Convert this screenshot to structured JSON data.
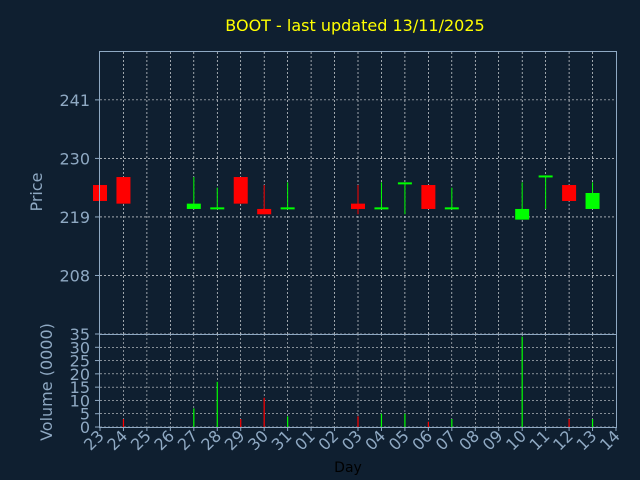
{
  "chart_data": [
    {
      "type": "candlestick",
      "title": "BOOT - last updated 13/11/2025",
      "ylabel": "Price",
      "ylim": [
        197,
        250
      ],
      "yticks": [
        "241",
        "230",
        "219",
        "208"
      ],
      "grid": true,
      "x_dates": [
        "23",
        "24",
        "25",
        "26",
        "27",
        "28",
        "29",
        "30",
        "31",
        "01",
        "02",
        "03",
        "04",
        "05",
        "06",
        "07",
        "08",
        "09",
        "10",
        "11",
        "12",
        "13",
        "14"
      ],
      "candles": [
        {
          "day": "23",
          "open": 225.0,
          "high": 225.0,
          "low": 222.0,
          "close": 222.0
        },
        {
          "day": "24",
          "open": 226.5,
          "high": 226.5,
          "low": 221.5,
          "close": 221.5
        },
        {
          "day": "27",
          "open": 220.5,
          "high": 226.5,
          "low": 220.5,
          "close": 221.5
        },
        {
          "day": "28",
          "open": 220.5,
          "high": 224.5,
          "low": 220.5,
          "close": 220.8
        },
        {
          "day": "29",
          "open": 226.5,
          "high": 226.5,
          "low": 221.5,
          "close": 221.5
        },
        {
          "day": "30",
          "open": 220.5,
          "high": 225.0,
          "low": 219.5,
          "close": 219.5
        },
        {
          "day": "31",
          "open": 220.5,
          "high": 225.5,
          "low": 220.5,
          "close": 220.8
        },
        {
          "day": "03",
          "open": 221.5,
          "high": 225.0,
          "low": 219.5,
          "close": 220.5
        },
        {
          "day": "04",
          "open": 220.5,
          "high": 225.5,
          "low": 220.5,
          "close": 220.8
        },
        {
          "day": "05",
          "open": 225.2,
          "high": 225.5,
          "low": 219.5,
          "close": 225.5
        },
        {
          "day": "06",
          "open": 225.0,
          "high": 225.0,
          "low": 220.5,
          "close": 220.5
        },
        {
          "day": "07",
          "open": 220.5,
          "high": 224.5,
          "low": 220.5,
          "close": 220.8
        },
        {
          "day": "10",
          "open": 218.5,
          "high": 225.5,
          "low": 218.5,
          "close": 220.5
        },
        {
          "day": "11",
          "open": 226.5,
          "high": 226.8,
          "low": 220.5,
          "close": 226.8
        },
        {
          "day": "12",
          "open": 225.0,
          "high": 225.0,
          "low": 222.0,
          "close": 222.0
        },
        {
          "day": "13",
          "open": 220.5,
          "high": 225.5,
          "low": 220.5,
          "close": 223.5
        }
      ]
    },
    {
      "type": "bar",
      "xlabel": "Day",
      "ylabel": "Volume (0000)",
      "ylim": [
        0,
        35
      ],
      "yticks": [
        "0",
        "5",
        "10",
        "15",
        "20",
        "25",
        "30",
        "35"
      ],
      "grid": true,
      "categories": [
        "23",
        "24",
        "25",
        "26",
        "27",
        "28",
        "29",
        "30",
        "31",
        "01",
        "02",
        "03",
        "04",
        "05",
        "06",
        "07",
        "08",
        "09",
        "10",
        "11",
        "12",
        "13",
        "14"
      ],
      "values": [
        0,
        3,
        0,
        0,
        7,
        17,
        3,
        11,
        4,
        0,
        0,
        4,
        5,
        5,
        2,
        3,
        0,
        0,
        34,
        0,
        3,
        3,
        0
      ],
      "bar_colors": [
        "#ff0000",
        "#ff0000",
        "#ff0000",
        "#ff0000",
        "#00ff00",
        "#00ff00",
        "#ff0000",
        "#ff0000",
        "#00ff00",
        "#ff0000",
        "#ff0000",
        "#ff0000",
        "#00ff00",
        "#00ff00",
        "#ff0000",
        "#00ff00",
        "#ff0000",
        "#ff0000",
        "#00ff00",
        "#00ff00",
        "#ff0000",
        "#00ff00",
        "#00ff00"
      ]
    }
  ],
  "colors": {
    "background": "#0f1f30",
    "axis": "#8fa9c3",
    "grid": "#ffffff",
    "title": "#ffff00",
    "up": "#00ff00",
    "down": "#ff0000",
    "xlabel": "#000000"
  }
}
